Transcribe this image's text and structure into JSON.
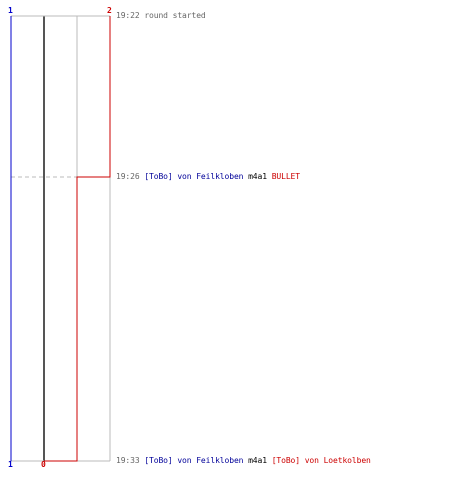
{
  "colors": {
    "blue": "#0000cc",
    "red": "#cc0000",
    "grid": "#bbbbbb",
    "dark": "#555555",
    "text": "#666666"
  },
  "scores": {
    "blue_top": "1",
    "red_top": "2",
    "blue_bottom": "1",
    "red_bottom": "0"
  },
  "events": [
    {
      "time": "19:22",
      "text": "round started"
    },
    {
      "time": "19:26",
      "killer_tag": "[ToBo]",
      "killer_name": "von Feilkloben",
      "weapon": "m4a1",
      "victim": "BULLET"
    },
    {
      "time": "19:33",
      "killer_tag": "[ToBo]",
      "killer_name": "von Feilkloben",
      "weapon": "m4a1",
      "victim_tag": "[ToBo]",
      "victim_name": "von Loetkolben"
    }
  ]
}
